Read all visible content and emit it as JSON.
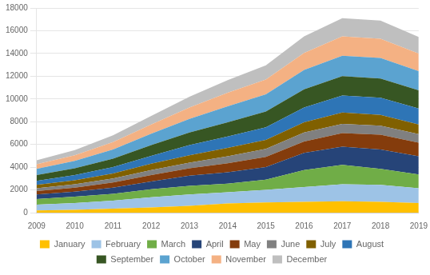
{
  "chart_data": {
    "type": "area",
    "stacked": true,
    "x": [
      2009,
      2010,
      2011,
      2012,
      2013,
      2014,
      2015,
      2016,
      2017,
      2018,
      2019
    ],
    "series": [
      {
        "name": "January",
        "color": "#FFC000",
        "values": [
          200,
          250,
          350,
          450,
          600,
          800,
          900,
          950,
          1000,
          950,
          850
        ]
      },
      {
        "name": "February",
        "color": "#9DC3E6",
        "values": [
          500,
          600,
          700,
          900,
          1000,
          1000,
          1100,
          1300,
          1500,
          1500,
          1300
        ]
      },
      {
        "name": "March",
        "color": "#70AD47",
        "values": [
          500,
          550,
          600,
          700,
          750,
          750,
          900,
          1500,
          1700,
          1400,
          1200
        ]
      },
      {
        "name": "April",
        "color": "#264478",
        "values": [
          400,
          450,
          550,
          700,
          900,
          1000,
          1100,
          1500,
          1600,
          1700,
          1600
        ]
      },
      {
        "name": "May",
        "color": "#843C0C",
        "values": [
          300,
          350,
          450,
          550,
          650,
          800,
          900,
          1000,
          1200,
          1300,
          1200
        ]
      },
      {
        "name": "June",
        "color": "#808080",
        "values": [
          250,
          300,
          350,
          450,
          500,
          600,
          700,
          800,
          800,
          800,
          750
        ]
      },
      {
        "name": "July",
        "color": "#806000",
        "values": [
          300,
          350,
          450,
          550,
          650,
          750,
          800,
          900,
          1000,
          950,
          850
        ]
      },
      {
        "name": "August",
        "color": "#2E75B6",
        "values": [
          350,
          450,
          550,
          700,
          900,
          1000,
          1100,
          1300,
          1500,
          1500,
          1400
        ]
      },
      {
        "name": "September",
        "color": "#375623",
        "values": [
          500,
          600,
          750,
          950,
          1100,
          1250,
          1400,
          1600,
          1700,
          1700,
          1600
        ]
      },
      {
        "name": "October",
        "color": "#5BA3D0",
        "values": [
          550,
          650,
          800,
          1000,
          1200,
          1400,
          1500,
          1700,
          1800,
          1800,
          1700
        ]
      },
      {
        "name": "November",
        "color": "#F4B183",
        "values": [
          400,
          500,
          650,
          800,
          1000,
          1200,
          1300,
          1500,
          1700,
          1700,
          1550
        ]
      },
      {
        "name": "December",
        "color": "#BFBFBF",
        "values": [
          350,
          450,
          600,
          750,
          950,
          1100,
          1250,
          1450,
          1600,
          1600,
          1450
        ]
      }
    ],
    "xlim": [
      2009,
      2019
    ],
    "xticks": [
      2009,
      2010,
      2011,
      2012,
      2013,
      2014,
      2015,
      2016,
      2017,
      2018,
      2019
    ],
    "ylim": [
      0,
      18000
    ],
    "yticks": [
      0,
      2000,
      4000,
      6000,
      8000,
      10000,
      12000,
      14000,
      16000,
      18000
    ],
    "grid": true,
    "legend": "bottom"
  }
}
